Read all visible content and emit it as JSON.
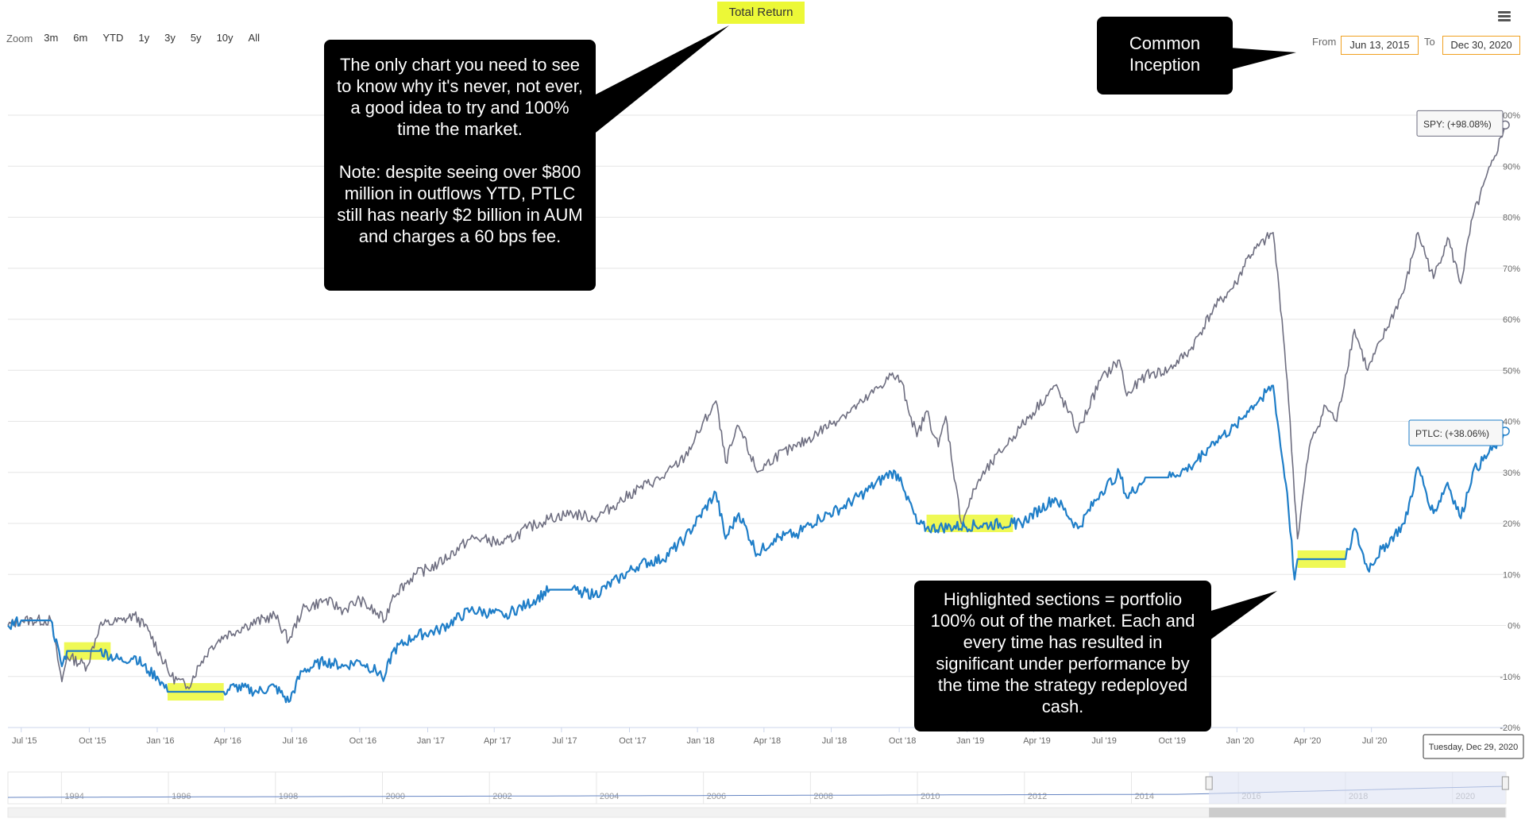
{
  "zoom": {
    "label": "Zoom",
    "buttons": [
      "3m",
      "6m",
      "YTD",
      "1y",
      "3y",
      "5y",
      "10y",
      "All"
    ]
  },
  "chart_title": "Total Return",
  "range": {
    "from_label": "From",
    "from_value": "Jun 13, 2015",
    "to_label": "To",
    "to_value": "Dec 30, 2020"
  },
  "callouts": {
    "top_left": [
      "The only chart you need to see to know why it's never, not ever, a good idea to try and 100% time the market.",
      "Note: despite seeing over $800 million in outflows YTD, PTLC still has nearly $2 billion in AUM and charges a 60 bps fee."
    ],
    "top_right": "Common Inception",
    "bottom_right": "Highlighted sections = portfolio 100% out of the market. Each and every time has resulted in significant under performance by the time the strategy redeployed cash."
  },
  "tooltip_date": "Tuesday, Dec 29, 2020",
  "navigator_years": [
    "1994",
    "1996",
    "1998",
    "2000",
    "2002",
    "2004",
    "2006",
    "2008",
    "2010",
    "2012",
    "2014",
    "2016",
    "2018",
    "2020"
  ],
  "colors": {
    "spy": "#6e6e80",
    "ptlc": "#1f7ec8",
    "highlight": "#ecf837",
    "navigator_mask": "#dde3f3"
  },
  "chart_data": {
    "type": "line",
    "title": "Total Return",
    "x_ticks": [
      "Jul '15",
      "Oct '15",
      "Jan '16",
      "Apr '16",
      "Jul '16",
      "Oct '16",
      "Jan '17",
      "Apr '17",
      "Jul '17",
      "Oct '17",
      "Jan '18",
      "Apr '18",
      "Jul '18",
      "Oct '18",
      "Jan '19",
      "Apr '19",
      "Jul '19",
      "Oct '19",
      "Jan '20",
      "Apr '20",
      "Jul '20"
    ],
    "y_ticks": [
      "100%",
      "90%",
      "80%",
      "70%",
      "60%",
      "50%",
      "40%",
      "30%",
      "20%",
      "10%",
      "0%",
      "-10%",
      "-20%"
    ],
    "ylim": [
      -20,
      100
    ],
    "xlim": [
      "2015-06-13",
      "2020-12-30"
    ],
    "series": [
      {
        "name": "SPY",
        "end_label": "SPY: (+98.08%)",
        "points": [
          [
            "2015-06-13",
            0
          ],
          [
            "2015-07-01",
            1
          ],
          [
            "2015-08-10",
            1
          ],
          [
            "2015-08-25",
            -11
          ],
          [
            "2015-09-01",
            -6
          ],
          [
            "2015-09-28",
            -8
          ],
          [
            "2015-10-15",
            0
          ],
          [
            "2015-11-15",
            1
          ],
          [
            "2015-12-01",
            2
          ],
          [
            "2015-12-20",
            -1
          ],
          [
            "2016-01-20",
            -10
          ],
          [
            "2016-02-11",
            -12
          ],
          [
            "2016-03-01",
            -7
          ],
          [
            "2016-03-15",
            -4
          ],
          [
            "2016-04-01",
            -2
          ],
          [
            "2016-05-01",
            0
          ],
          [
            "2016-06-08",
            2
          ],
          [
            "2016-06-27",
            -3
          ],
          [
            "2016-07-15",
            3
          ],
          [
            "2016-08-15",
            5
          ],
          [
            "2016-09-09",
            3
          ],
          [
            "2016-10-01",
            5
          ],
          [
            "2016-11-04",
            1
          ],
          [
            "2016-11-15",
            6
          ],
          [
            "2016-12-15",
            10
          ],
          [
            "2017-01-15",
            12
          ],
          [
            "2017-02-28",
            17
          ],
          [
            "2017-03-15",
            17
          ],
          [
            "2017-04-13",
            16
          ],
          [
            "2017-05-15",
            19
          ],
          [
            "2017-06-15",
            21
          ],
          [
            "2017-07-15",
            22
          ],
          [
            "2017-08-15",
            21
          ],
          [
            "2017-09-15",
            24
          ],
          [
            "2017-10-15",
            27
          ],
          [
            "2017-11-15",
            29
          ],
          [
            "2017-12-15",
            33
          ],
          [
            "2018-01-26",
            44
          ],
          [
            "2018-02-08",
            32
          ],
          [
            "2018-02-26",
            39
          ],
          [
            "2018-03-23",
            30
          ],
          [
            "2018-04-15",
            33
          ],
          [
            "2018-05-15",
            35
          ],
          [
            "2018-06-15",
            38
          ],
          [
            "2018-07-15",
            41
          ],
          [
            "2018-08-15",
            44
          ],
          [
            "2018-09-20",
            49
          ],
          [
            "2018-10-03",
            48
          ],
          [
            "2018-10-25",
            37
          ],
          [
            "2018-11-07",
            42
          ],
          [
            "2018-11-23",
            35
          ],
          [
            "2018-12-03",
            41
          ],
          [
            "2018-12-24",
            20
          ],
          [
            "2019-01-15",
            28
          ],
          [
            "2019-02-15",
            34
          ],
          [
            "2019-03-15",
            39
          ],
          [
            "2019-04-30",
            47
          ],
          [
            "2019-05-31",
            38
          ],
          [
            "2019-06-30",
            48
          ],
          [
            "2019-07-26",
            52
          ],
          [
            "2019-08-05",
            45
          ],
          [
            "2019-08-30",
            49
          ],
          [
            "2019-09-30",
            50
          ],
          [
            "2019-10-30",
            54
          ],
          [
            "2019-11-30",
            62
          ],
          [
            "2019-12-31",
            67
          ],
          [
            "2020-01-15",
            72
          ],
          [
            "2020-02-19",
            77
          ],
          [
            "2020-03-02",
            60
          ],
          [
            "2020-03-09",
            48
          ],
          [
            "2020-03-23",
            17
          ],
          [
            "2020-04-08",
            35
          ],
          [
            "2020-04-30",
            43
          ],
          [
            "2020-05-15",
            40
          ],
          [
            "2020-06-08",
            58
          ],
          [
            "2020-06-26",
            50
          ],
          [
            "2020-07-15",
            56
          ],
          [
            "2020-08-15",
            66
          ],
          [
            "2020-09-02",
            77
          ],
          [
            "2020-09-23",
            68
          ],
          [
            "2020-10-12",
            76
          ],
          [
            "2020-10-30",
            67
          ],
          [
            "2020-11-15",
            80
          ],
          [
            "2020-12-15",
            92
          ],
          [
            "2020-12-29",
            98.08
          ]
        ]
      },
      {
        "name": "PTLC",
        "end_label": "PTLC: (+38.06%)",
        "points": [
          [
            "2015-06-13",
            0
          ],
          [
            "2015-07-01",
            1
          ],
          [
            "2015-08-10",
            1
          ],
          [
            "2015-08-25",
            -8
          ],
          [
            "2015-09-01",
            -5
          ],
          [
            "2015-10-15",
            -5
          ],
          [
            "2015-11-15",
            -7
          ],
          [
            "2015-12-01",
            -6
          ],
          [
            "2015-12-20",
            -9
          ],
          [
            "2016-01-01",
            -10
          ],
          [
            "2016-01-15",
            -13
          ],
          [
            "2016-03-31",
            -13
          ],
          [
            "2016-04-15",
            -12
          ],
          [
            "2016-05-15",
            -13
          ],
          [
            "2016-06-08",
            -12
          ],
          [
            "2016-06-27",
            -15
          ],
          [
            "2016-07-15",
            -9
          ],
          [
            "2016-08-15",
            -7
          ],
          [
            "2016-09-09",
            -8
          ],
          [
            "2016-10-01",
            -7
          ],
          [
            "2016-11-04",
            -10
          ],
          [
            "2016-11-15",
            -5
          ],
          [
            "2016-12-15",
            -2
          ],
          [
            "2017-01-15",
            -1
          ],
          [
            "2017-02-28",
            3
          ],
          [
            "2017-04-13",
            2
          ],
          [
            "2017-05-15",
            4
          ],
          [
            "2017-06-15",
            7
          ],
          [
            "2017-07-15",
            7
          ],
          [
            "2017-08-15",
            6
          ],
          [
            "2017-09-15",
            9
          ],
          [
            "2017-10-15",
            12
          ],
          [
            "2017-11-15",
            13
          ],
          [
            "2017-12-15",
            17
          ],
          [
            "2018-01-26",
            26
          ],
          [
            "2018-02-08",
            17
          ],
          [
            "2018-02-26",
            22
          ],
          [
            "2018-03-23",
            14
          ],
          [
            "2018-04-15",
            17
          ],
          [
            "2018-05-15",
            18
          ],
          [
            "2018-06-15",
            21
          ],
          [
            "2018-07-15",
            23
          ],
          [
            "2018-08-15",
            26
          ],
          [
            "2018-09-20",
            30
          ],
          [
            "2018-10-03",
            29
          ],
          [
            "2018-10-25",
            20
          ],
          [
            "2018-11-07",
            19
          ],
          [
            "2019-03-04",
            20
          ],
          [
            "2019-03-15",
            20
          ],
          [
            "2019-04-30",
            25
          ],
          [
            "2019-05-31",
            19
          ],
          [
            "2019-06-30",
            26
          ],
          [
            "2019-07-26",
            30
          ],
          [
            "2019-08-05",
            25
          ],
          [
            "2019-08-30",
            29
          ],
          [
            "2019-09-30",
            29
          ],
          [
            "2019-10-30",
            31
          ],
          [
            "2019-11-30",
            36
          ],
          [
            "2019-12-31",
            39
          ],
          [
            "2020-01-15",
            42
          ],
          [
            "2020-02-19",
            47
          ],
          [
            "2020-03-02",
            33
          ],
          [
            "2020-03-09",
            26
          ],
          [
            "2020-03-19",
            9
          ],
          [
            "2020-03-23",
            13
          ],
          [
            "2020-05-27",
            13
          ],
          [
            "2020-06-08",
            19
          ],
          [
            "2020-06-26",
            11
          ],
          [
            "2020-07-15",
            15
          ],
          [
            "2020-08-15",
            20
          ],
          [
            "2020-09-02",
            31
          ],
          [
            "2020-09-23",
            22
          ],
          [
            "2020-10-12",
            28
          ],
          [
            "2020-10-30",
            21
          ],
          [
            "2020-11-15",
            30
          ],
          [
            "2020-12-15",
            35
          ],
          [
            "2020-12-29",
            38.06
          ]
        ]
      }
    ],
    "highlights": [
      {
        "start": "2015-08-28",
        "end": "2015-10-30",
        "level": -5
      },
      {
        "start": "2016-01-15",
        "end": "2016-03-31",
        "level": -13
      },
      {
        "start": "2018-11-07",
        "end": "2019-03-04",
        "level": 20
      },
      {
        "start": "2020-03-23",
        "end": "2020-05-27",
        "level": 13
      }
    ]
  }
}
